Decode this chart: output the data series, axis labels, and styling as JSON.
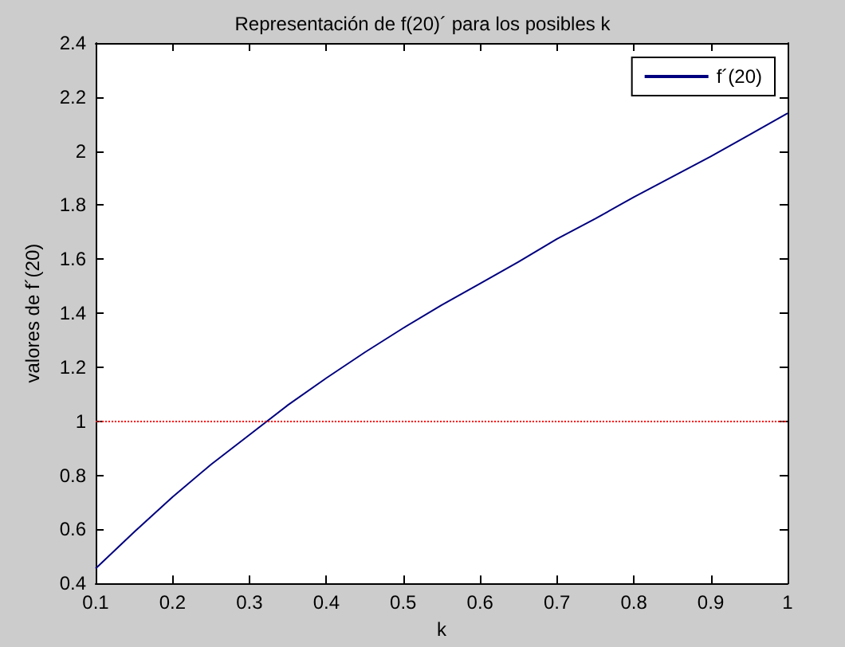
{
  "chart_data": {
    "type": "line",
    "title": "Representación de f(20)´ para los posibles k",
    "xlabel": "k",
    "ylabel": "valores de f´(20)",
    "x": [
      0.1,
      0.15,
      0.2,
      0.25,
      0.3,
      0.35,
      0.4,
      0.45,
      0.5,
      0.55,
      0.6,
      0.65,
      0.7,
      0.75,
      0.8,
      0.85,
      0.9,
      0.95,
      1.0
    ],
    "series": [
      {
        "name": "f´(20)",
        "color": "#00007f",
        "values": [
          0.455,
          0.59,
          0.72,
          0.84,
          0.95,
          1.06,
          1.16,
          1.255,
          1.345,
          1.43,
          1.51,
          1.59,
          1.675,
          1.75,
          1.83,
          1.905,
          1.98,
          2.06,
          2.14
        ]
      }
    ],
    "xlim": [
      0.1,
      1
    ],
    "ylim": [
      0.4,
      2.4
    ],
    "xticks": [
      0.1,
      0.2,
      0.3,
      0.4,
      0.5,
      0.6,
      0.7,
      0.8,
      0.9,
      1
    ],
    "yticks": [
      0.4,
      0.6,
      0.8,
      1,
      1.2,
      1.4,
      1.6,
      1.8,
      2,
      2.2,
      2.4
    ],
    "ref_lines": [
      {
        "axis": "y",
        "value": 1,
        "color": "#ff0000",
        "line_style": "dotted"
      }
    ],
    "legend": "top right",
    "grid": false,
    "marker": "none",
    "line_style": "solid"
  }
}
